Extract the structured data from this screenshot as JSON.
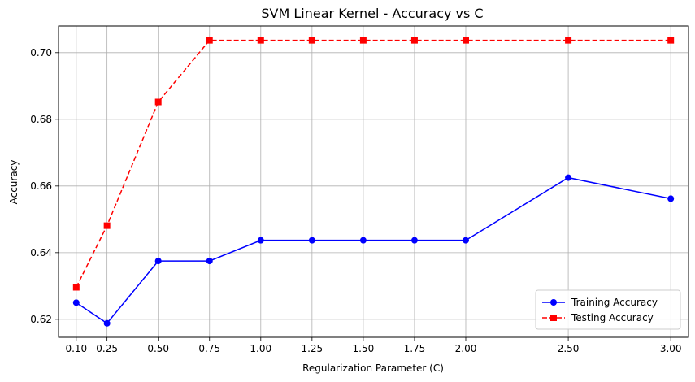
{
  "chart_data": {
    "type": "line",
    "title": "SVM Linear Kernel - Accuracy vs C",
    "xlabel": "Regularization Parameter (C)",
    "ylabel": "Accuracy",
    "x": [
      0.1,
      0.25,
      0.5,
      0.75,
      1.0,
      1.25,
      1.5,
      1.75,
      2.0,
      2.5,
      3.0
    ],
    "x_tick_labels": [
      "0.10",
      "0.25",
      "0.50",
      "0.75",
      "1.00",
      "1.25",
      "1.50",
      "1.75",
      "2.00",
      "2.50",
      "3.00"
    ],
    "y_ticks": [
      0.62,
      0.64,
      0.66,
      0.68,
      0.7
    ],
    "y_tick_labels": [
      "0.62",
      "0.64",
      "0.66",
      "0.68",
      "0.70"
    ],
    "xlim": [
      0.0135,
      3.0865
    ],
    "ylim": [
      0.6146,
      0.708
    ],
    "grid": true,
    "legend_position": "lower-right",
    "series": [
      {
        "name": "Training Accuracy",
        "color": "#0000ff",
        "line_style": "solid",
        "marker": "circle",
        "values": [
          0.625,
          0.6188,
          0.6375,
          0.6375,
          0.6437,
          0.6437,
          0.6437,
          0.6437,
          0.6437,
          0.6625,
          0.6562
        ]
      },
      {
        "name": "Testing Accuracy",
        "color": "#ff0000",
        "line_style": "dashed",
        "marker": "square",
        "values": [
          0.6296,
          0.6481,
          0.6852,
          0.7037,
          0.7037,
          0.7037,
          0.7037,
          0.7037,
          0.7037,
          0.7037,
          0.7037
        ]
      }
    ]
  }
}
